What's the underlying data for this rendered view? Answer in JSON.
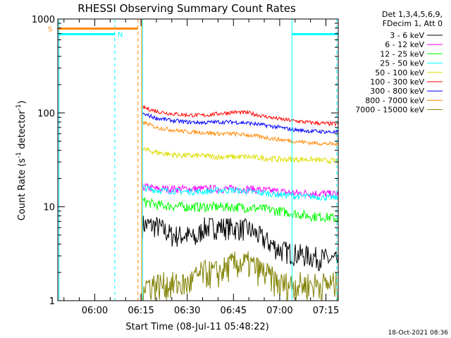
{
  "chart_data": {
    "type": "line",
    "title": "RHESSI Observing Summary Count Rates",
    "xlabel": "Start Time (08-Jul-11 05:48:22)",
    "ylabel_main": "Count Rate (s",
    "ylabel_sup1": "-1",
    "ylabel_mid": " detector",
    "ylabel_sup2": "-1",
    "ylabel_end": ")",
    "y_scale": "log",
    "ylim": [
      1,
      1000
    ],
    "y_ticks": [
      {
        "value": 1,
        "label": "1"
      },
      {
        "value": 10,
        "label": "10"
      },
      {
        "value": 100,
        "label": "100"
      },
      {
        "value": 1000,
        "label": "1000"
      }
    ],
    "xlim_minutes": [
      -12.0,
      79.0
    ],
    "x_ticks": [
      {
        "minute": 0,
        "label": "06:00"
      },
      {
        "minute": 15,
        "label": "06:15"
      },
      {
        "minute": 30,
        "label": "06:30"
      },
      {
        "minute": 45,
        "label": "06:45"
      },
      {
        "minute": 60,
        "label": "07:00"
      },
      {
        "minute": 75,
        "label": "07:15"
      }
    ],
    "legend_header": [
      "Det 1,3,4,5,6,9,",
      "FDecim 1, Att 0"
    ],
    "legend_position": "right",
    "series": [
      {
        "name": "3 - 6 keV",
        "color": "#000000",
        "x": [
          15.5,
          20,
          22,
          25,
          30,
          33,
          35,
          40,
          45,
          50,
          55,
          60,
          65,
          70,
          75,
          79
        ],
        "y": [
          6.5,
          6.3,
          5.8,
          5.0,
          5.0,
          4.5,
          6.0,
          6.2,
          6.0,
          5.8,
          4.5,
          3.5,
          3.2,
          3.0,
          2.8,
          2.6
        ],
        "spread": 0.28
      },
      {
        "name": "6 - 12 keV",
        "color": "#ff00ff",
        "x": [
          15.5,
          20,
          25,
          30,
          35,
          40,
          45,
          50,
          55,
          60,
          65,
          70,
          75,
          79
        ],
        "y": [
          16.5,
          15.5,
          15.5,
          15.5,
          15.5,
          15.5,
          15.5,
          15.5,
          15.0,
          14.5,
          14.0,
          14.0,
          13.8,
          13.5
        ],
        "spread": 0.1
      },
      {
        "name": "12 - 25 keV",
        "color": "#00ff00",
        "x": [
          15.5,
          20,
          25,
          30,
          35,
          40,
          45,
          50,
          55,
          60,
          65,
          70,
          75,
          79
        ],
        "y": [
          11.5,
          10.5,
          10.2,
          10.0,
          10.0,
          10.0,
          10.0,
          9.8,
          9.5,
          9.0,
          8.5,
          8.0,
          7.8,
          7.5
        ],
        "spread": 0.12
      },
      {
        "name": "25 - 50 keV",
        "color": "#00ffff",
        "x": [
          15.5,
          20,
          25,
          30,
          35,
          40,
          45,
          50,
          55,
          60,
          65,
          70,
          75,
          79
        ],
        "y": [
          16.0,
          15.0,
          14.8,
          14.5,
          14.5,
          15.0,
          15.0,
          14.5,
          14.0,
          13.5,
          13.0,
          12.8,
          12.6,
          12.5
        ],
        "spread": 0.08
      },
      {
        "name": "50 - 100 keV",
        "color": "#dddd00",
        "x": [
          15.5,
          20,
          25,
          30,
          35,
          40,
          45,
          50,
          55,
          60,
          65,
          70,
          75,
          79
        ],
        "y": [
          41,
          38,
          36,
          35,
          35,
          34,
          34,
          34,
          33,
          32,
          32,
          32,
          31,
          31
        ],
        "spread": 0.07
      },
      {
        "name": "100 - 300 keV",
        "color": "#ff0000",
        "x": [
          15.5,
          20,
          25,
          30,
          35,
          40,
          45,
          50,
          55,
          60,
          65,
          70,
          75,
          79
        ],
        "y": [
          115,
          104,
          98,
          95,
          94,
          98,
          102,
          100,
          92,
          86,
          82,
          79,
          77,
          76
        ],
        "spread": 0.05
      },
      {
        "name": "300 - 800 keV",
        "color": "#0000ff",
        "x": [
          15.5,
          20,
          25,
          30,
          35,
          40,
          45,
          50,
          55,
          60,
          65,
          70,
          75,
          79
        ],
        "y": [
          98,
          88,
          83,
          80,
          79,
          80,
          80,
          78,
          74,
          70,
          66,
          64,
          63,
          62
        ],
        "spread": 0.05
      },
      {
        "name": "800 - 7000 keV",
        "color": "#ff8800",
        "x": [
          15.5,
          20,
          25,
          30,
          35,
          40,
          45,
          50,
          55,
          60,
          65,
          70,
          75,
          79
        ],
        "y": [
          80,
          70,
          66,
          63,
          62,
          60,
          60,
          58,
          55,
          52,
          50,
          48,
          47,
          46
        ],
        "spread": 0.05
      },
      {
        "name": "7000 - 15000 keV",
        "color": "#808000",
        "x": [
          15.5,
          20,
          25,
          30,
          35,
          40,
          45,
          50,
          55,
          60,
          65,
          70,
          75,
          79
        ],
        "y": [
          1.5,
          1.5,
          1.5,
          1.5,
          2.0,
          2.0,
          2.5,
          2.5,
          2.0,
          1.5,
          1.5,
          1.5,
          1.5,
          1.5
        ],
        "spread": 0.35
      }
    ],
    "state_bars": [
      {
        "label": "S",
        "color": "#ff8800",
        "x_start": -12.0,
        "x_end": 14.0,
        "y": 790
      },
      {
        "label": "N",
        "color": "#00ffff",
        "x_start": -12.0,
        "x_end": 6.5,
        "y": 690
      },
      {
        "label": "",
        "color": "#00ffff",
        "x_start": 64.0,
        "x_end": 79.0,
        "y": 690
      }
    ],
    "vertical_markers": [
      {
        "minute": 6.5,
        "color": "#00ffff",
        "style": "dashed"
      },
      {
        "minute": 14.0,
        "color": "#ff8800",
        "style": "dashed"
      },
      {
        "minute": 78.5,
        "color": "#00ffff",
        "style": "dashed"
      },
      {
        "minute": 15.2,
        "color": "#ff8800",
        "style": "solid"
      },
      {
        "minute": 15.5,
        "color": "#00ffff",
        "style": "solid"
      },
      {
        "minute": 64.0,
        "color": "#00ffff",
        "style": "solid"
      },
      {
        "minute": -11.6,
        "color": "#00ffff",
        "style": "solid"
      }
    ],
    "footer": "18-Oct-2021 08:36"
  }
}
